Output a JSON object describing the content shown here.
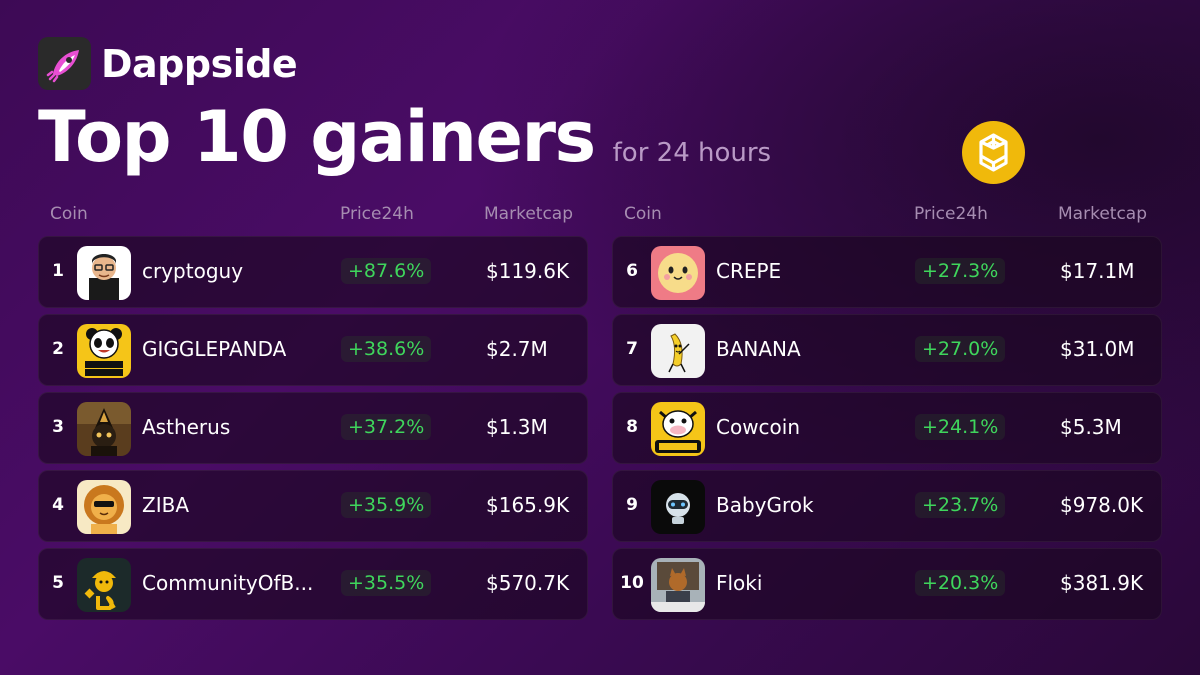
{
  "brand": {
    "name": "Dappside"
  },
  "headline": {
    "title": "Top 10 gainers",
    "subtitle": "for 24 hours"
  },
  "chain_icon": "bnb-chain-icon",
  "colors": {
    "positive": "#3fd65c",
    "chain_gold": "#f0b90b",
    "brand_pink": "#e84fd3"
  },
  "columns": {
    "coin": "Coin",
    "price": "Price24h",
    "marketcap": "Marketcap"
  },
  "left": [
    {
      "rank": "1",
      "name": "cryptoguy",
      "change": "+87.6%",
      "marketcap": "$119.6K"
    },
    {
      "rank": "2",
      "name": "GIGGLEPANDA",
      "change": "+38.6%",
      "marketcap": "$2.7M"
    },
    {
      "rank": "3",
      "name": "Astherus",
      "change": "+37.2%",
      "marketcap": "$1.3M"
    },
    {
      "rank": "4",
      "name": "ZIBA",
      "change": "+35.9%",
      "marketcap": "$165.9K"
    },
    {
      "rank": "5",
      "name": "CommunityOfB...",
      "change": "+35.5%",
      "marketcap": "$570.7K"
    }
  ],
  "right": [
    {
      "rank": "6",
      "name": "CREPE",
      "change": "+27.3%",
      "marketcap": "$17.1M"
    },
    {
      "rank": "7",
      "name": "BANANA",
      "change": "+27.0%",
      "marketcap": "$31.0M"
    },
    {
      "rank": "8",
      "name": "Cowcoin",
      "change": "+24.1%",
      "marketcap": "$5.3M"
    },
    {
      "rank": "9",
      "name": "BabyGrok",
      "change": "+23.7%",
      "marketcap": "$978.0K"
    },
    {
      "rank": "10",
      "name": "Floki",
      "change": "+20.3%",
      "marketcap": "$381.9K"
    }
  ]
}
